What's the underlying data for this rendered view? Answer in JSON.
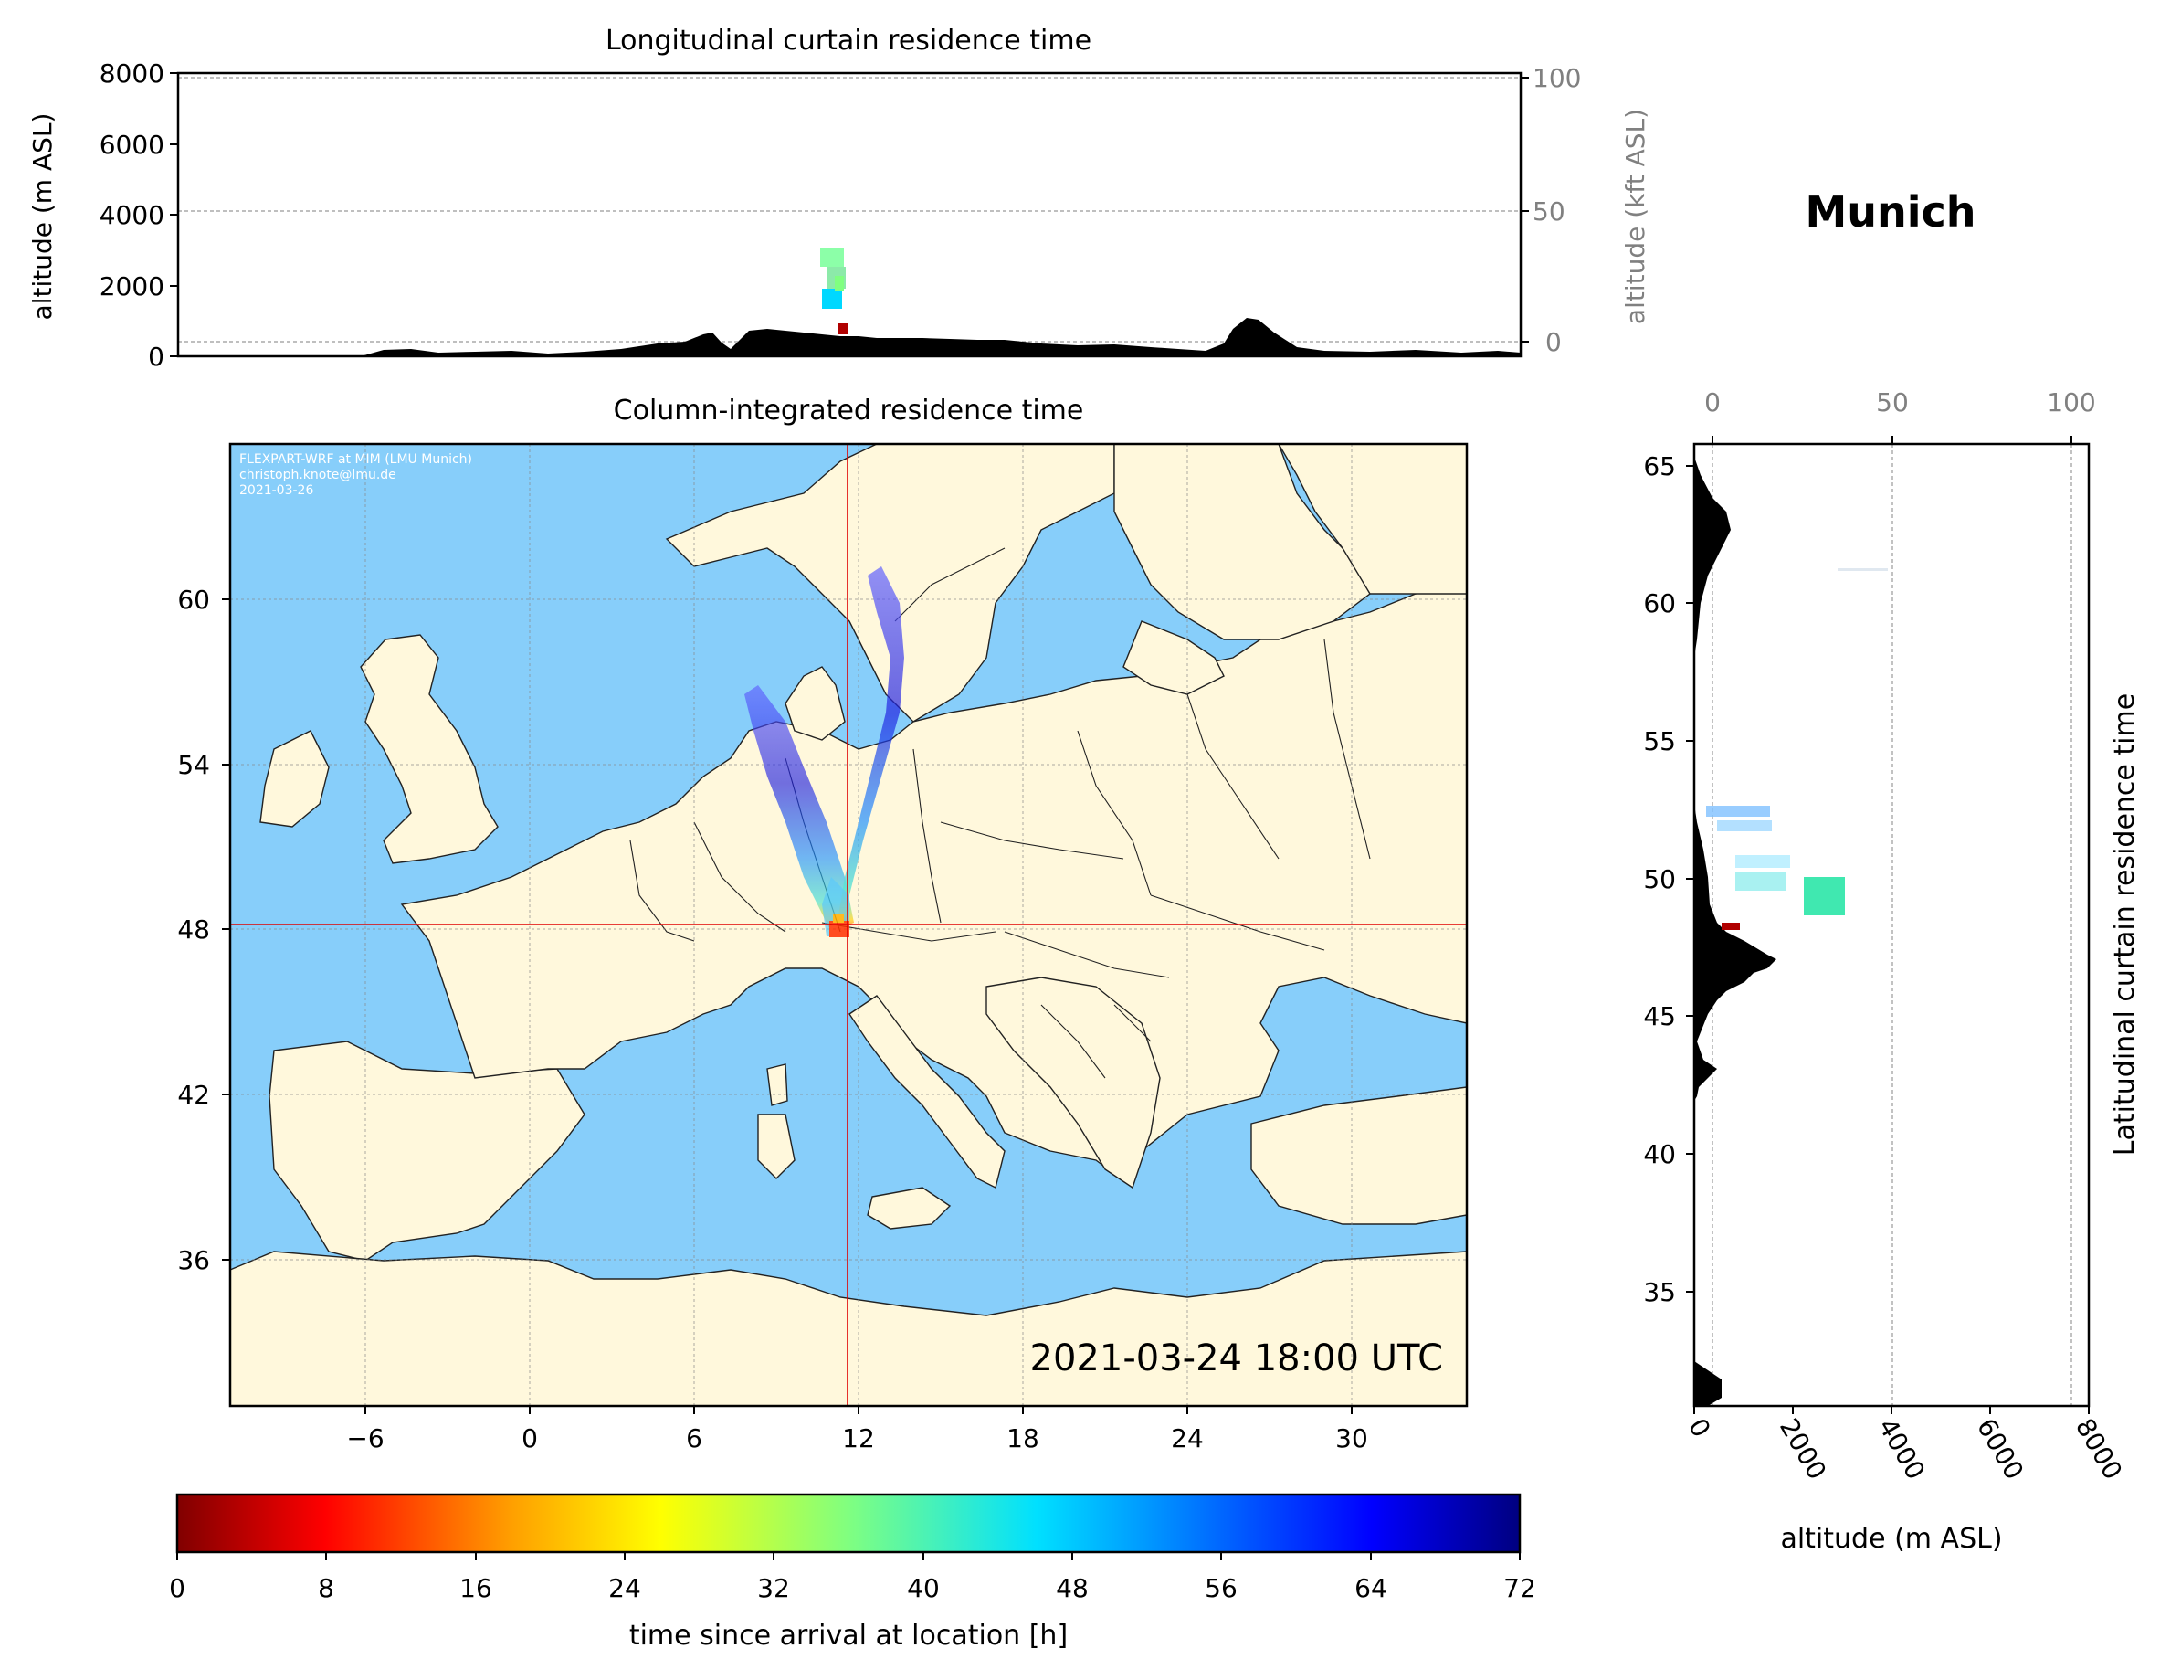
{
  "station": "Munich",
  "top_panel": {
    "title": "Longitudinal curtain residence time",
    "ylabel_left": "altitude (m ASL)",
    "ylabel_right": "altitude (kft ASL)",
    "yticks_left": [
      "0",
      "2000",
      "4000",
      "6000",
      "8000"
    ],
    "yticks_right": [
      "0",
      "50",
      "100"
    ]
  },
  "map_panel": {
    "title": "Column-integrated residence time",
    "credit": [
      "FLEXPART-WRF at MIM (LMU Munich)",
      "christoph.knote@lmu.de",
      "2021-03-26"
    ],
    "timestamp": "2021-03-24 18:00 UTC",
    "xticks": [
      "−6",
      "0",
      "6",
      "12",
      "18",
      "24",
      "30"
    ],
    "yticks": [
      "36",
      "42",
      "48",
      "54",
      "60"
    ],
    "ocean_color": "#87cefa",
    "land_color": "#fff8dc",
    "crosshair_color": "#e00000"
  },
  "side_panel": {
    "ylabel": "Latitudinal curtain residence time",
    "xlabel": "altitude (m ASL)",
    "xticks_bottom": [
      "0",
      "2000",
      "4000",
      "6000",
      "8000"
    ],
    "xticks_top": [
      "0",
      "50",
      "100"
    ],
    "yticks": [
      "35",
      "40",
      "45",
      "50",
      "55",
      "60",
      "65"
    ]
  },
  "colorbar": {
    "label": "time since arrival at location [h]",
    "ticks": [
      "0",
      "8",
      "16",
      "24",
      "32",
      "40",
      "48",
      "56",
      "64",
      "72"
    ],
    "min": 0,
    "max": 72,
    "colormap": "jet_r"
  }
}
